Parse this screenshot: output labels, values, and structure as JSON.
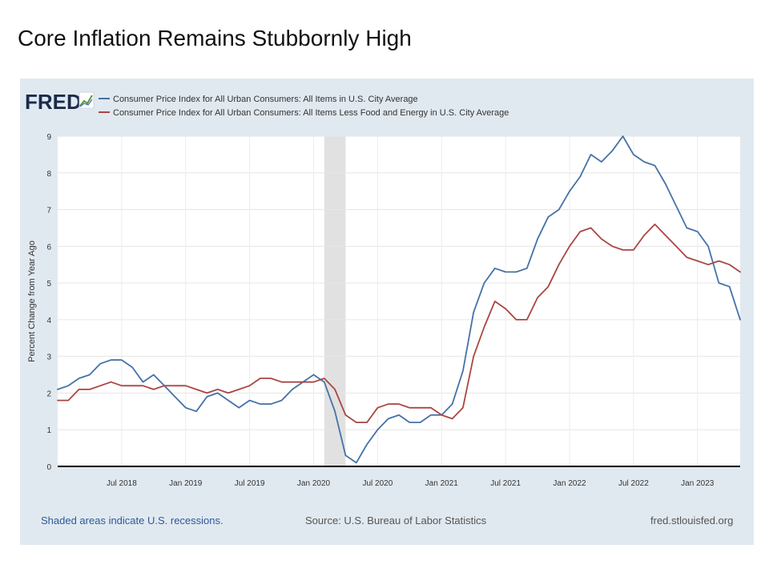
{
  "slide": {
    "title": "Core Inflation Remains Stubbornly High"
  },
  "fred": {
    "logo": "FRED",
    "footer_left": "Shaded areas indicate U.S. recessions.",
    "footer_center": "Source: U.S. Bureau of Labor Statistics",
    "footer_right": "fred.stlouisfed.org"
  },
  "chart_data": {
    "type": "line",
    "title": "Core Inflation Remains Stubbornly High",
    "ylabel": "Percent Change from Year Ago",
    "xlabel": "",
    "ylim": [
      0,
      9
    ],
    "yticks": [
      0,
      1,
      2,
      3,
      4,
      5,
      6,
      7,
      8,
      9
    ],
    "xlim": [
      "2018-01",
      "2023-05"
    ],
    "xticks": [
      {
        "date": "2018-07",
        "label": "Jul 2018"
      },
      {
        "date": "2019-01",
        "label": "Jan 2019"
      },
      {
        "date": "2019-07",
        "label": "Jul 2019"
      },
      {
        "date": "2020-01",
        "label": "Jan 2020"
      },
      {
        "date": "2020-07",
        "label": "Jul 2020"
      },
      {
        "date": "2021-01",
        "label": "Jan 2021"
      },
      {
        "date": "2021-07",
        "label": "Jul 2021"
      },
      {
        "date": "2022-01",
        "label": "Jan 2022"
      },
      {
        "date": "2022-07",
        "label": "Jul 2022"
      },
      {
        "date": "2023-01",
        "label": "Jan 2023"
      }
    ],
    "grid": true,
    "legend_position": "top",
    "recession_shading": [
      {
        "start": "2020-02",
        "end": "2020-04"
      }
    ],
    "x": [
      "2018-01",
      "2018-02",
      "2018-03",
      "2018-04",
      "2018-05",
      "2018-06",
      "2018-07",
      "2018-08",
      "2018-09",
      "2018-10",
      "2018-11",
      "2018-12",
      "2019-01",
      "2019-02",
      "2019-03",
      "2019-04",
      "2019-05",
      "2019-06",
      "2019-07",
      "2019-08",
      "2019-09",
      "2019-10",
      "2019-11",
      "2019-12",
      "2020-01",
      "2020-02",
      "2020-03",
      "2020-04",
      "2020-05",
      "2020-06",
      "2020-07",
      "2020-08",
      "2020-09",
      "2020-10",
      "2020-11",
      "2020-12",
      "2021-01",
      "2021-02",
      "2021-03",
      "2021-04",
      "2021-05",
      "2021-06",
      "2021-07",
      "2021-08",
      "2021-09",
      "2021-10",
      "2021-11",
      "2021-12",
      "2022-01",
      "2022-02",
      "2022-03",
      "2022-04",
      "2022-05",
      "2022-06",
      "2022-07",
      "2022-08",
      "2022-09",
      "2022-10",
      "2022-11",
      "2022-12",
      "2023-01",
      "2023-02",
      "2023-03",
      "2023-04",
      "2023-05"
    ],
    "series": [
      {
        "name": "Consumer Price Index for All Urban Consumers: All Items in U.S. City Average",
        "color": "#4572a7",
        "values": [
          2.1,
          2.2,
          2.4,
          2.5,
          2.8,
          2.9,
          2.9,
          2.7,
          2.3,
          2.5,
          2.2,
          1.9,
          1.6,
          1.5,
          1.9,
          2.0,
          1.8,
          1.6,
          1.8,
          1.7,
          1.7,
          1.8,
          2.1,
          2.3,
          2.5,
          2.3,
          1.5,
          0.3,
          0.1,
          0.6,
          1.0,
          1.3,
          1.4,
          1.2,
          1.2,
          1.4,
          1.4,
          1.7,
          2.6,
          4.2,
          5.0,
          5.4,
          5.3,
          5.3,
          5.4,
          6.2,
          6.8,
          7.0,
          7.5,
          7.9,
          8.5,
          8.3,
          8.6,
          9.0,
          8.5,
          8.3,
          8.2,
          7.7,
          7.1,
          6.5,
          6.4,
          6.0,
          5.0,
          4.9,
          4.0
        ]
      },
      {
        "name": "Consumer Price Index for All Urban Consumers: All Items Less Food and Energy in U.S. City Average",
        "color": "#aa4643",
        "values": [
          1.8,
          1.8,
          2.1,
          2.1,
          2.2,
          2.3,
          2.2,
          2.2,
          2.2,
          2.1,
          2.2,
          2.2,
          2.2,
          2.1,
          2.0,
          2.1,
          2.0,
          2.1,
          2.2,
          2.4,
          2.4,
          2.3,
          2.3,
          2.3,
          2.3,
          2.4,
          2.1,
          1.4,
          1.2,
          1.2,
          1.6,
          1.7,
          1.7,
          1.6,
          1.6,
          1.6,
          1.4,
          1.3,
          1.6,
          3.0,
          3.8,
          4.5,
          4.3,
          4.0,
          4.0,
          4.6,
          4.9,
          5.5,
          6.0,
          6.4,
          6.5,
          6.2,
          6.0,
          5.9,
          5.9,
          6.3,
          6.6,
          6.3,
          6.0,
          5.7,
          5.6,
          5.5,
          5.6,
          5.5,
          5.3
        ]
      }
    ]
  }
}
